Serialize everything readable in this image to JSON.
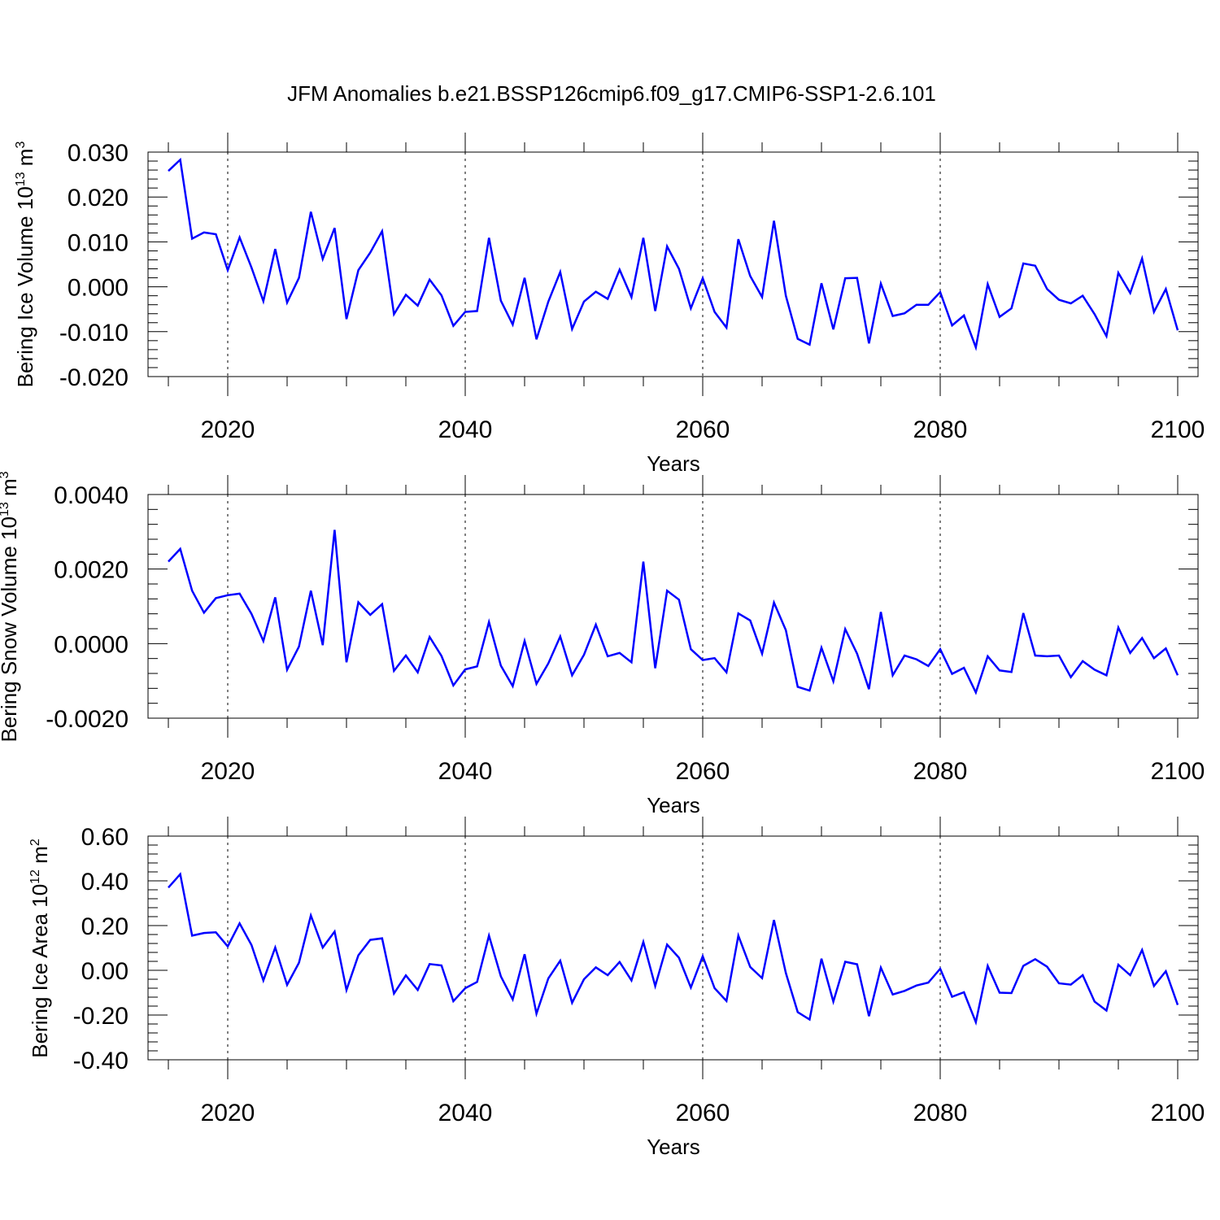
{
  "title": "JFM Anomalies b.e21.BSSP126cmip6.f09_g17.CMIP6-SSP1-2.6.101",
  "series_color": "#0000ff",
  "chart_data": [
    {
      "type": "line",
      "ylabel": {
        "text": "Bering Ice Volume 10",
        "exp": "13",
        "unit": " m",
        "unit_exp": "3"
      },
      "xlabel": "Years",
      "xlim": [
        2015,
        2100
      ],
      "ylim": [
        -0.02,
        0.03
      ],
      "ytick_values": [
        -0.02,
        -0.01,
        0.0,
        0.01,
        0.02,
        0.03
      ],
      "ytick_labels": [
        "-0.020",
        "-0.010",
        "0.000",
        "0.010",
        "0.020",
        "0.030"
      ],
      "xtick_values": [
        2020,
        2040,
        2060,
        2080,
        2100
      ],
      "xtick_labels": [
        "2020",
        "2040",
        "2060",
        "2080",
        "2100"
      ],
      "grid": "dashed vertical at major x ticks",
      "x": [
        2015,
        2016,
        2017,
        2018,
        2019,
        2020,
        2021,
        2022,
        2023,
        2024,
        2025,
        2026,
        2027,
        2028,
        2029,
        2030,
        2031,
        2032,
        2033,
        2034,
        2035,
        2036,
        2037,
        2038,
        2039,
        2040,
        2041,
        2042,
        2043,
        2044,
        2045,
        2046,
        2047,
        2048,
        2049,
        2050,
        2051,
        2052,
        2053,
        2054,
        2055,
        2056,
        2057,
        2058,
        2059,
        2060,
        2061,
        2062,
        2063,
        2064,
        2065,
        2066,
        2067,
        2068,
        2069,
        2070,
        2071,
        2072,
        2073,
        2074,
        2075,
        2076,
        2077,
        2078,
        2079,
        2080,
        2081,
        2082,
        2083,
        2084,
        2085,
        2086,
        2087,
        2088,
        2089,
        2090,
        2091,
        2092,
        2093,
        2094,
        2095,
        2096,
        2097,
        2098,
        2099,
        2100
      ],
      "values": [
        0.0258,
        0.0283,
        0.0107,
        0.0121,
        0.0117,
        0.0037,
        0.011,
        0.0043,
        -0.0032,
        0.0084,
        -0.0035,
        0.002,
        0.0167,
        0.0062,
        0.0131,
        -0.0072,
        0.0037,
        0.0076,
        0.0124,
        -0.0061,
        -0.0018,
        -0.0042,
        0.0016,
        -0.0019,
        -0.0087,
        -0.0056,
        -0.0054,
        0.0109,
        -0.0031,
        -0.0084,
        0.002,
        -0.0117,
        -0.0033,
        0.0033,
        -0.0094,
        -0.0033,
        -0.0011,
        -0.0027,
        0.0038,
        -0.0023,
        0.0109,
        -0.0054,
        0.009,
        0.004,
        -0.0048,
        0.0019,
        -0.0056,
        -0.0091,
        0.0106,
        0.0024,
        -0.0023,
        0.0147,
        -0.002,
        -0.0116,
        -0.0129,
        0.0008,
        -0.0095,
        0.0019,
        0.002,
        -0.0126,
        0.0007,
        -0.0065,
        -0.0059,
        -0.004,
        -0.004,
        -0.0012,
        -0.0086,
        -0.0064,
        -0.0135,
        0.0006,
        -0.0067,
        -0.0048,
        0.0052,
        0.0047,
        -0.0005,
        -0.0029,
        -0.0037,
        -0.002,
        -0.0061,
        -0.011,
        0.0031,
        -0.0014,
        0.0063,
        -0.0056,
        -0.0005,
        -0.0097
      ]
    },
    {
      "type": "line",
      "ylabel": {
        "text": "Bering Snow Volume 10",
        "exp": "13",
        "unit": " m",
        "unit_exp": "3"
      },
      "xlabel": "Years",
      "xlim": [
        2015,
        2100
      ],
      "ylim": [
        -0.002,
        0.004
      ],
      "ytick_values": [
        -0.002,
        0.0,
        0.002,
        0.004
      ],
      "ytick_labels": [
        "-0.0020",
        "0.0000",
        "0.0020",
        "0.0040"
      ],
      "xtick_values": [
        2020,
        2040,
        2060,
        2080,
        2100
      ],
      "xtick_labels": [
        "2020",
        "2040",
        "2060",
        "2080",
        "2100"
      ],
      "grid": "dashed vertical at major x ticks",
      "x": [
        2015,
        2016,
        2017,
        2018,
        2019,
        2020,
        2021,
        2022,
        2023,
        2024,
        2025,
        2026,
        2027,
        2028,
        2029,
        2030,
        2031,
        2032,
        2033,
        2034,
        2035,
        2036,
        2037,
        2038,
        2039,
        2040,
        2041,
        2042,
        2043,
        2044,
        2045,
        2046,
        2047,
        2048,
        2049,
        2050,
        2051,
        2052,
        2053,
        2054,
        2055,
        2056,
        2057,
        2058,
        2059,
        2060,
        2061,
        2062,
        2063,
        2064,
        2065,
        2066,
        2067,
        2068,
        2069,
        2070,
        2071,
        2072,
        2073,
        2074,
        2075,
        2076,
        2077,
        2078,
        2079,
        2080,
        2081,
        2082,
        2083,
        2084,
        2085,
        2086,
        2087,
        2088,
        2089,
        2090,
        2091,
        2092,
        2093,
        2094,
        2095,
        2096,
        2097,
        2098,
        2099,
        2100
      ],
      "values": [
        0.0022,
        0.00254,
        0.00142,
        0.00083,
        0.00122,
        0.0013,
        0.00134,
        0.0008,
        7e-05,
        0.00124,
        -0.0007,
        -8e-05,
        0.00142,
        -4e-05,
        0.00305,
        -0.0005,
        0.00111,
        0.00077,
        0.00106,
        -0.00073,
        -0.00032,
        -0.00077,
        0.00018,
        -0.00033,
        -0.00112,
        -0.00069,
        -0.00061,
        0.00058,
        -0.00059,
        -0.00114,
        7e-05,
        -0.00108,
        -0.00053,
        0.00019,
        -0.00085,
        -0.0003,
        0.00051,
        -0.00034,
        -0.00025,
        -0.0005,
        0.0022,
        -0.00066,
        0.00142,
        0.00118,
        -0.00015,
        -0.00044,
        -0.00039,
        -0.00077,
        0.00081,
        0.00062,
        -0.00027,
        0.0011,
        0.00036,
        -0.00116,
        -0.00126,
        -0.00011,
        -0.00101,
        0.00039,
        -0.00027,
        -0.00122,
        0.00085,
        -0.00085,
        -0.00032,
        -0.00042,
        -0.0006,
        -0.00015,
        -0.00081,
        -0.00065,
        -0.00131,
        -0.00034,
        -0.00072,
        -0.00076,
        0.00082,
        -0.00032,
        -0.00034,
        -0.00032,
        -0.0009,
        -0.00047,
        -0.0007,
        -0.00085,
        0.00043,
        -0.00025,
        0.00015,
        -0.00039,
        -0.00013,
        -0.00085
      ]
    },
    {
      "type": "line",
      "ylabel": {
        "text": "Bering Ice Area 10",
        "exp": "12",
        "unit": " m",
        "unit_exp": "2"
      },
      "xlabel": "Years",
      "xlim": [
        2015,
        2100
      ],
      "ylim": [
        -0.4,
        0.6
      ],
      "ytick_values": [
        -0.4,
        -0.2,
        0.0,
        0.2,
        0.4,
        0.6
      ],
      "ytick_labels": [
        "-0.40",
        "-0.20",
        "0.00",
        "0.20",
        "0.40",
        "0.60"
      ],
      "xtick_values": [
        2020,
        2040,
        2060,
        2080,
        2100
      ],
      "xtick_labels": [
        "2020",
        "2040",
        "2060",
        "2080",
        "2100"
      ],
      "grid": "dashed vertical at major x ticks",
      "x": [
        2015,
        2016,
        2017,
        2018,
        2019,
        2020,
        2021,
        2022,
        2023,
        2024,
        2025,
        2026,
        2027,
        2028,
        2029,
        2030,
        2031,
        2032,
        2033,
        2034,
        2035,
        2036,
        2037,
        2038,
        2039,
        2040,
        2041,
        2042,
        2043,
        2044,
        2045,
        2046,
        2047,
        2048,
        2049,
        2050,
        2051,
        2052,
        2053,
        2054,
        2055,
        2056,
        2057,
        2058,
        2059,
        2060,
        2061,
        2062,
        2063,
        2064,
        2065,
        2066,
        2067,
        2068,
        2069,
        2070,
        2071,
        2072,
        2073,
        2074,
        2075,
        2076,
        2077,
        2078,
        2079,
        2080,
        2081,
        2082,
        2083,
        2084,
        2085,
        2086,
        2087,
        2088,
        2089,
        2090,
        2091,
        2092,
        2093,
        2094,
        2095,
        2096,
        2097,
        2098,
        2099,
        2100
      ],
      "values": [
        0.37,
        0.43,
        0.155,
        0.167,
        0.17,
        0.107,
        0.21,
        0.113,
        -0.045,
        0.102,
        -0.065,
        0.034,
        0.245,
        0.102,
        0.173,
        -0.088,
        0.067,
        0.136,
        0.143,
        -0.104,
        -0.023,
        -0.088,
        0.028,
        0.022,
        -0.138,
        -0.08,
        -0.052,
        0.155,
        -0.027,
        -0.13,
        0.072,
        -0.194,
        -0.036,
        0.043,
        -0.145,
        -0.04,
        0.013,
        -0.022,
        0.037,
        -0.045,
        0.127,
        -0.07,
        0.115,
        0.056,
        -0.077,
        0.063,
        -0.08,
        -0.137,
        0.155,
        0.015,
        -0.035,
        0.225,
        -0.012,
        -0.187,
        -0.22,
        0.052,
        -0.14,
        0.038,
        0.027,
        -0.205,
        0.012,
        -0.108,
        -0.092,
        -0.068,
        -0.055,
        0.007,
        -0.118,
        -0.098,
        -0.232,
        0.02,
        -0.1,
        -0.102,
        0.02,
        0.05,
        0.016,
        -0.058,
        -0.064,
        -0.022,
        -0.14,
        -0.18,
        0.025,
        -0.022,
        0.091,
        -0.07,
        -0.004,
        -0.155
      ]
    }
  ]
}
